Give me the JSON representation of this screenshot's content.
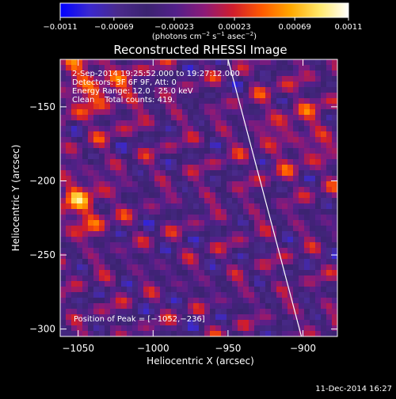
{
  "chart_data": {
    "type": "heatmap",
    "title": "Reconstructed RHESSI Image",
    "xlabel": "Heliocentric X (arcsec)",
    "ylabel": "Heliocentric Y (arcsec)",
    "xlim": [
      -1062,
      -877
    ],
    "ylim": [
      -305,
      -118
    ],
    "x_ticks": [
      -1050,
      -1000,
      -950,
      -900
    ],
    "x_tick_labels": [
      "−1050",
      "−1000",
      "−950",
      "−900"
    ],
    "y_ticks": [
      -300,
      -250,
      -200,
      -150
    ],
    "y_tick_labels": [
      "−300",
      "−250",
      "−200",
      "−150"
    ],
    "colorbar": {
      "range": [
        -0.0011,
        0.0011
      ],
      "ticks": [
        -0.0011,
        -0.00069,
        -0.00023,
        0.00023,
        0.00069,
        0.0011
      ],
      "tick_labels": [
        "−0.0011",
        "−0.00069",
        "−0.00023",
        "0.00023",
        "0.00069",
        "0.0011"
      ],
      "unit_parts": {
        "a": "(photons cm",
        "b": "−2",
        "c": " s",
        "d": "−1",
        "e": " asec",
        "f": "−2",
        "g": ")"
      },
      "stops": [
        "#0000ff",
        "#3a28d0",
        "#4a2a8c",
        "#3b2370",
        "#52208a",
        "#8c1a78",
        "#d11d2c",
        "#ff5a00",
        "#ffa800",
        "#ffe86a",
        "#ffffff"
      ]
    },
    "annotations": [
      "2-Sep-2014 19:25:52.000 to 19:27:12.000",
      "Detectors: 3F 6F 9F, Att: 0",
      "Energy Range: 12.0 - 25.0 keV",
      "Clean    Total counts: 419."
    ],
    "peak_label": "Position of Peak = [−1052,−236]",
    "peak_position": [
      -1052,
      -236
    ],
    "limb_line": [
      [
        -950,
        -118
      ],
      [
        -901,
        -305
      ]
    ]
  },
  "footer": {
    "timestamp": "11-Dec-2014 16:27"
  }
}
